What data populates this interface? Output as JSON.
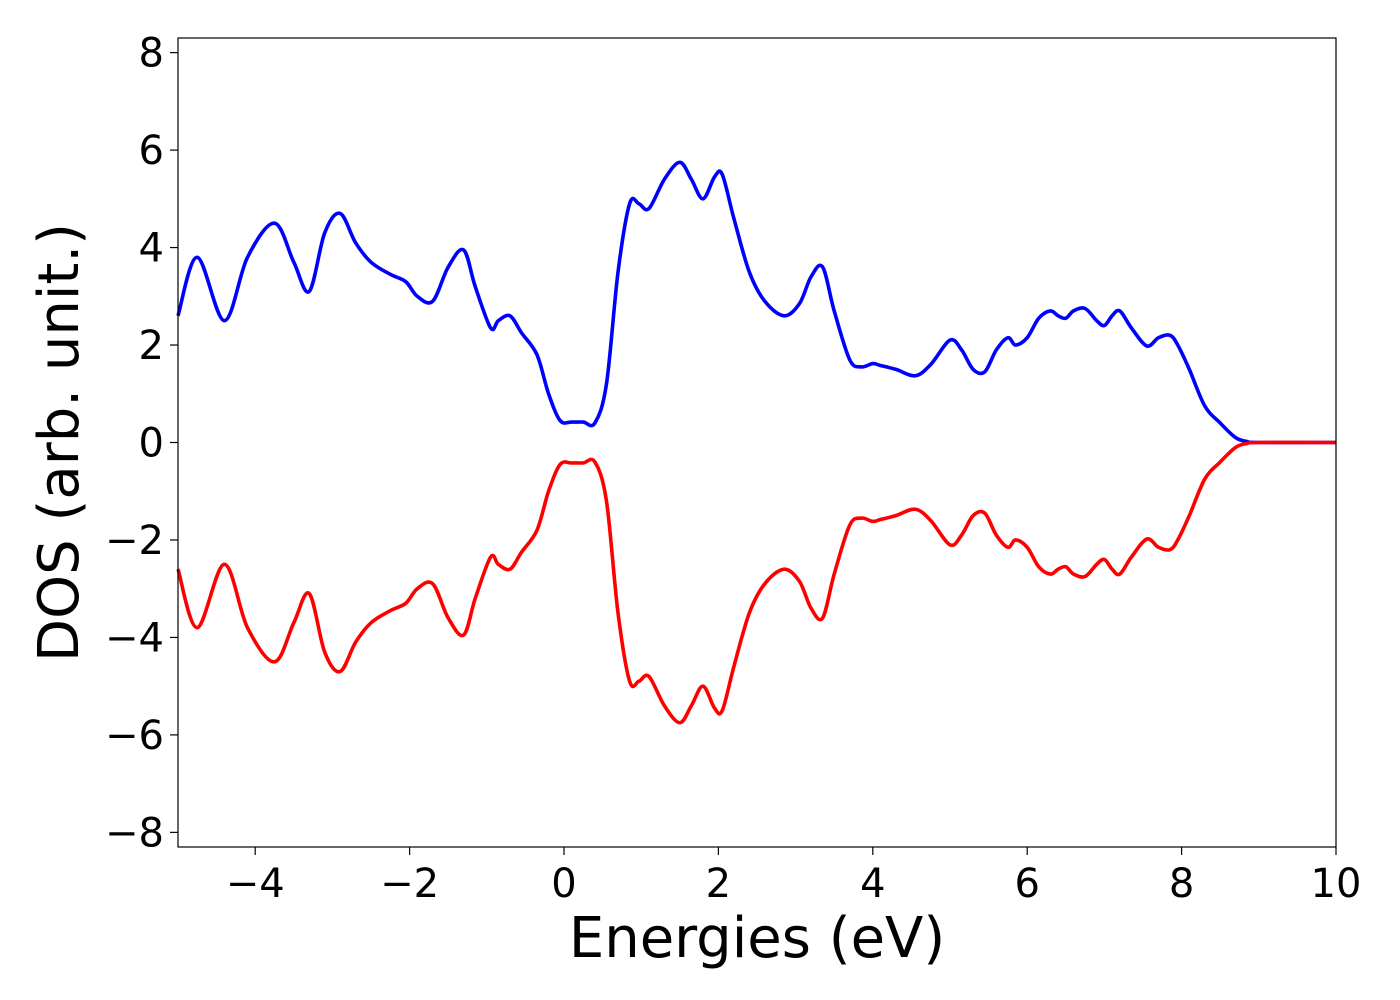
{
  "chart_data": {
    "type": "line",
    "title": "",
    "xlabel": "Energies (eV)",
    "ylabel": "DOS (arb. unit.)",
    "xlim": [
      -5,
      10
    ],
    "ylim": [
      -8.3,
      8.3
    ],
    "grid": false,
    "legend": "none",
    "xticks": [
      {
        "value": -4,
        "label": "−4"
      },
      {
        "value": -2,
        "label": "−2"
      },
      {
        "value": 0,
        "label": "0"
      },
      {
        "value": 2,
        "label": "2"
      },
      {
        "value": 4,
        "label": "4"
      },
      {
        "value": 6,
        "label": "6"
      },
      {
        "value": 8,
        "label": "8"
      },
      {
        "value": 10,
        "label": "10"
      }
    ],
    "yticks": [
      {
        "value": 8,
        "label": "8"
      },
      {
        "value": 6,
        "label": "6"
      },
      {
        "value": 4,
        "label": "4"
      },
      {
        "value": 2,
        "label": "2"
      },
      {
        "value": 0,
        "label": "0"
      },
      {
        "value": -2,
        "label": "−2"
      },
      {
        "value": -4,
        "label": "−4"
      },
      {
        "value": -6,
        "label": "−6"
      },
      {
        "value": -8,
        "label": "−8"
      }
    ],
    "series": [
      {
        "color": "#0000ff",
        "x": [
          -5.0,
          -4.75,
          -4.4,
          -4.1,
          -3.75,
          -3.5,
          -3.3,
          -3.1,
          -2.9,
          -2.7,
          -2.5,
          -2.25,
          -2.05,
          -1.9,
          -1.7,
          -1.5,
          -1.3,
          -1.15,
          -0.95,
          -0.85,
          -0.7,
          -0.55,
          -0.35,
          -0.2,
          -0.05,
          0.1,
          0.25,
          0.4,
          0.55,
          0.7,
          0.85,
          0.97,
          1.1,
          1.3,
          1.5,
          1.65,
          1.8,
          1.95,
          2.05,
          2.2,
          2.4,
          2.6,
          2.85,
          3.05,
          3.2,
          3.35,
          3.5,
          3.7,
          3.85,
          4.0,
          4.1,
          4.3,
          4.55,
          4.75,
          5.0,
          5.15,
          5.3,
          5.45,
          5.6,
          5.75,
          5.85,
          6.0,
          6.15,
          6.3,
          6.4,
          6.5,
          6.6,
          6.75,
          6.9,
          7.0,
          7.1,
          7.2,
          7.35,
          7.55,
          7.7,
          7.85,
          7.95,
          8.1,
          8.3,
          8.5,
          8.7,
          8.85,
          9.0,
          10.0
        ],
        "y": [
          2.6,
          3.8,
          2.5,
          3.8,
          4.5,
          3.7,
          3.1,
          4.3,
          4.7,
          4.1,
          3.7,
          3.45,
          3.3,
          3.0,
          2.9,
          3.6,
          3.95,
          3.2,
          2.35,
          2.5,
          2.6,
          2.25,
          1.8,
          1.0,
          0.45,
          0.42,
          0.42,
          0.4,
          1.2,
          3.5,
          4.9,
          4.9,
          4.8,
          5.4,
          5.75,
          5.4,
          5.0,
          5.45,
          5.5,
          4.6,
          3.5,
          2.9,
          2.6,
          2.85,
          3.4,
          3.6,
          2.7,
          1.7,
          1.55,
          1.62,
          1.58,
          1.5,
          1.37,
          1.6,
          2.1,
          1.9,
          1.5,
          1.45,
          1.9,
          2.15,
          2.0,
          2.15,
          2.55,
          2.7,
          2.6,
          2.55,
          2.7,
          2.75,
          2.5,
          2.4,
          2.6,
          2.7,
          2.35,
          1.98,
          2.15,
          2.2,
          2.0,
          1.5,
          0.75,
          0.4,
          0.1,
          0.02,
          0.0,
          0.0
        ]
      },
      {
        "color": "#ff0000",
        "x": [
          -5.0,
          -4.75,
          -4.4,
          -4.1,
          -3.75,
          -3.5,
          -3.3,
          -3.1,
          -2.9,
          -2.7,
          -2.5,
          -2.25,
          -2.05,
          -1.9,
          -1.7,
          -1.5,
          -1.3,
          -1.15,
          -0.95,
          -0.85,
          -0.7,
          -0.55,
          -0.35,
          -0.2,
          -0.05,
          0.1,
          0.25,
          0.4,
          0.55,
          0.7,
          0.85,
          0.97,
          1.1,
          1.3,
          1.5,
          1.65,
          1.8,
          1.95,
          2.05,
          2.2,
          2.4,
          2.6,
          2.85,
          3.05,
          3.2,
          3.35,
          3.5,
          3.7,
          3.85,
          4.0,
          4.1,
          4.3,
          4.55,
          4.75,
          5.0,
          5.15,
          5.3,
          5.45,
          5.6,
          5.75,
          5.85,
          6.0,
          6.15,
          6.3,
          6.4,
          6.5,
          6.6,
          6.75,
          6.9,
          7.0,
          7.1,
          7.2,
          7.35,
          7.55,
          7.7,
          7.85,
          7.95,
          8.1,
          8.3,
          8.5,
          8.7,
          8.85,
          9.0,
          10.0
        ],
        "y": [
          -2.6,
          -3.8,
          -2.5,
          -3.8,
          -4.5,
          -3.7,
          -3.1,
          -4.3,
          -4.7,
          -4.1,
          -3.7,
          -3.45,
          -3.3,
          -3.0,
          -2.9,
          -3.6,
          -3.95,
          -3.2,
          -2.35,
          -2.5,
          -2.6,
          -2.25,
          -1.8,
          -1.0,
          -0.45,
          -0.42,
          -0.42,
          -0.4,
          -1.2,
          -3.5,
          -4.9,
          -4.9,
          -4.8,
          -5.4,
          -5.75,
          -5.4,
          -5.0,
          -5.45,
          -5.5,
          -4.6,
          -3.5,
          -2.9,
          -2.6,
          -2.85,
          -3.4,
          -3.6,
          -2.7,
          -1.7,
          -1.55,
          -1.62,
          -1.58,
          -1.5,
          -1.37,
          -1.6,
          -2.1,
          -1.9,
          -1.5,
          -1.45,
          -1.9,
          -2.15,
          -2.0,
          -2.15,
          -2.55,
          -2.7,
          -2.6,
          -2.55,
          -2.7,
          -2.75,
          -2.5,
          -2.4,
          -2.6,
          -2.7,
          -2.35,
          -1.98,
          -2.15,
          -2.2,
          -2.0,
          -1.5,
          -0.75,
          -0.4,
          -0.1,
          -0.02,
          0.0,
          0.0
        ]
      }
    ]
  }
}
